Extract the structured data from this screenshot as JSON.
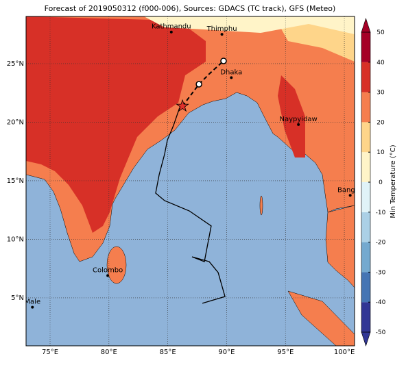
{
  "title": "Forecast of 2019050312 (f000-006), Sources: GDACS (TC track), GFS (Meteo)",
  "lonlim": [
    72.96,
    100.87
  ],
  "latlim": [
    0.9,
    29.03
  ],
  "lon_ticks": [
    {
      "value": 75,
      "label": "75°E"
    },
    {
      "value": 80,
      "label": "80°E"
    },
    {
      "value": 85,
      "label": "85°E"
    },
    {
      "value": 90,
      "label": "90°E"
    },
    {
      "value": 95,
      "label": "95°E"
    },
    {
      "value": 100,
      "label": "100°E"
    }
  ],
  "lat_ticks": [
    {
      "value": 5,
      "label": "5°N"
    },
    {
      "value": 10,
      "label": "10°N"
    },
    {
      "value": 15,
      "label": "15°N"
    },
    {
      "value": 20,
      "label": "20°N"
    },
    {
      "value": 25,
      "label": "25°N"
    }
  ],
  "cities": [
    {
      "name": "Kathmandu",
      "lon": 85.3,
      "lat": 27.7
    },
    {
      "name": "Thimphu",
      "lon": 89.6,
      "lat": 27.5
    },
    {
      "name": "Dhaka",
      "lon": 90.4,
      "lat": 23.8
    },
    {
      "name": "Naypyidaw",
      "lon": 96.1,
      "lat": 19.8
    },
    {
      "name": "Bangko",
      "lon": 100.5,
      "lat": 13.75
    },
    {
      "name": "Colombo",
      "lon": 79.9,
      "lat": 6.9
    },
    {
      "name": "Male",
      "lon": 73.5,
      "lat": 4.2
    }
  ],
  "track": {
    "lon": [
      87.94,
      89.86,
      89.28,
      88.52,
      87.06,
      88.11,
      88.69,
      86.83,
      84.73,
      83.97,
      84.27,
      84.73,
      84.96,
      85.49,
      86.01
    ],
    "lat": [
      4.53,
      5.11,
      7.16,
      8.09,
      8.5,
      8.09,
      11.14,
      12.42,
      13.3,
      13.94,
      15.52,
      17.27,
      18.45,
      19.73,
      21.25
    ]
  },
  "forecast": {
    "lon": [
      86.25,
      87.65,
      88.52,
      89.74
    ],
    "lat": [
      21.37,
      23.24,
      24.12,
      25.23
    ]
  },
  "colorbar": {
    "label": "Min Temperature (°C)",
    "lim": [
      -50,
      50
    ],
    "ticks": [
      -50,
      -40,
      -30,
      -20,
      -10,
      0,
      10,
      20,
      30,
      40,
      50
    ],
    "colors": [
      "#313695",
      "#4575b4",
      "#74a9cf",
      "#abd0e6",
      "#e0f3f8",
      "#fff4c8",
      "#fed58a",
      "#f57e4e",
      "#d73027",
      "#a50026"
    ]
  }
}
